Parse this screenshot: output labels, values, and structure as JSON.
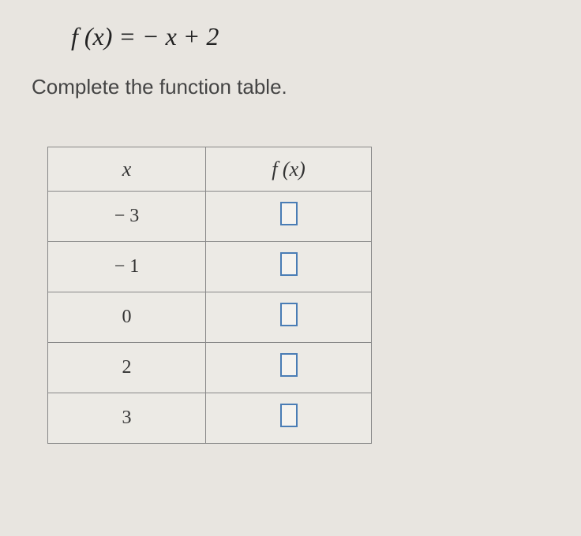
{
  "equation": "f (x) = − x + 2",
  "instruction": "Complete the function table.",
  "table": {
    "headers": {
      "x": "x",
      "fx": "f (x)"
    },
    "rows": [
      {
        "x": "− 3"
      },
      {
        "x": "− 1"
      },
      {
        "x": "0"
      },
      {
        "x": "2"
      },
      {
        "x": "3"
      }
    ]
  },
  "styling": {
    "background_color": "#e8e5e0",
    "text_color": "#333333",
    "border_color": "#888888",
    "input_border_color": "#4a7db5",
    "equation_fontsize": 32,
    "instruction_fontsize": 26,
    "header_fontsize": 26,
    "cell_fontsize": 24,
    "col_x_width": 200,
    "col_fx_width": 210,
    "header_row_height": 56,
    "data_row_height": 64,
    "input_box_width": 22,
    "input_box_height": 30
  }
}
